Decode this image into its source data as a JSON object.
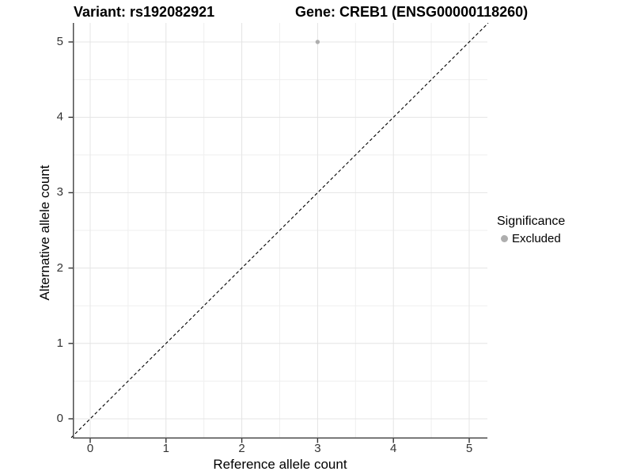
{
  "titles": {
    "variant": "Variant: rs192082921",
    "gene": "Gene: CREB1 (ENSG00000118260)"
  },
  "legend": {
    "title": "Significance",
    "items": [
      {
        "label": "Excluded",
        "color": "#AEAEAE"
      }
    ]
  },
  "colors": {
    "background": "#FFFFFF",
    "grid_major": "#E4E4E4",
    "grid_minor": "#EFEFEF",
    "axis_line": "#4D4D4D",
    "tick_mark": "#333333",
    "tick_text": "#333333",
    "title_text": "#000000",
    "point": "#AEAEAE",
    "identity_line": "#000000"
  },
  "chart_data": {
    "type": "scatter",
    "title": "Variant: rs192082921  |  Gene: CREB1 (ENSG00000118260)",
    "xlabel": "Reference allele count",
    "ylabel": "Alternative allele count",
    "xlim": [
      -0.25,
      5.25
    ],
    "ylim": [
      -0.25,
      5.25
    ],
    "x_ticks": [
      0,
      1,
      2,
      3,
      4,
      5
    ],
    "y_ticks": [
      0,
      1,
      2,
      3,
      4,
      5
    ],
    "grid": {
      "major_x": [
        0,
        1,
        2,
        3,
        4,
        5
      ],
      "minor_x": [
        0.5,
        1.5,
        2.5,
        3.5,
        4.5
      ],
      "major_y": [
        0,
        1,
        2,
        3,
        4,
        5
      ],
      "minor_y": [
        0.5,
        1.5,
        2.5,
        3.5,
        4.5
      ]
    },
    "legend_position": "right",
    "series": [
      {
        "name": "Excluded",
        "color": "#AEAEAE",
        "points": [
          {
            "x": 3,
            "y": 5
          }
        ]
      }
    ],
    "reference_line": {
      "type": "identity",
      "slope": 1,
      "intercept": 0,
      "style": "dashed",
      "color": "#000000"
    }
  }
}
